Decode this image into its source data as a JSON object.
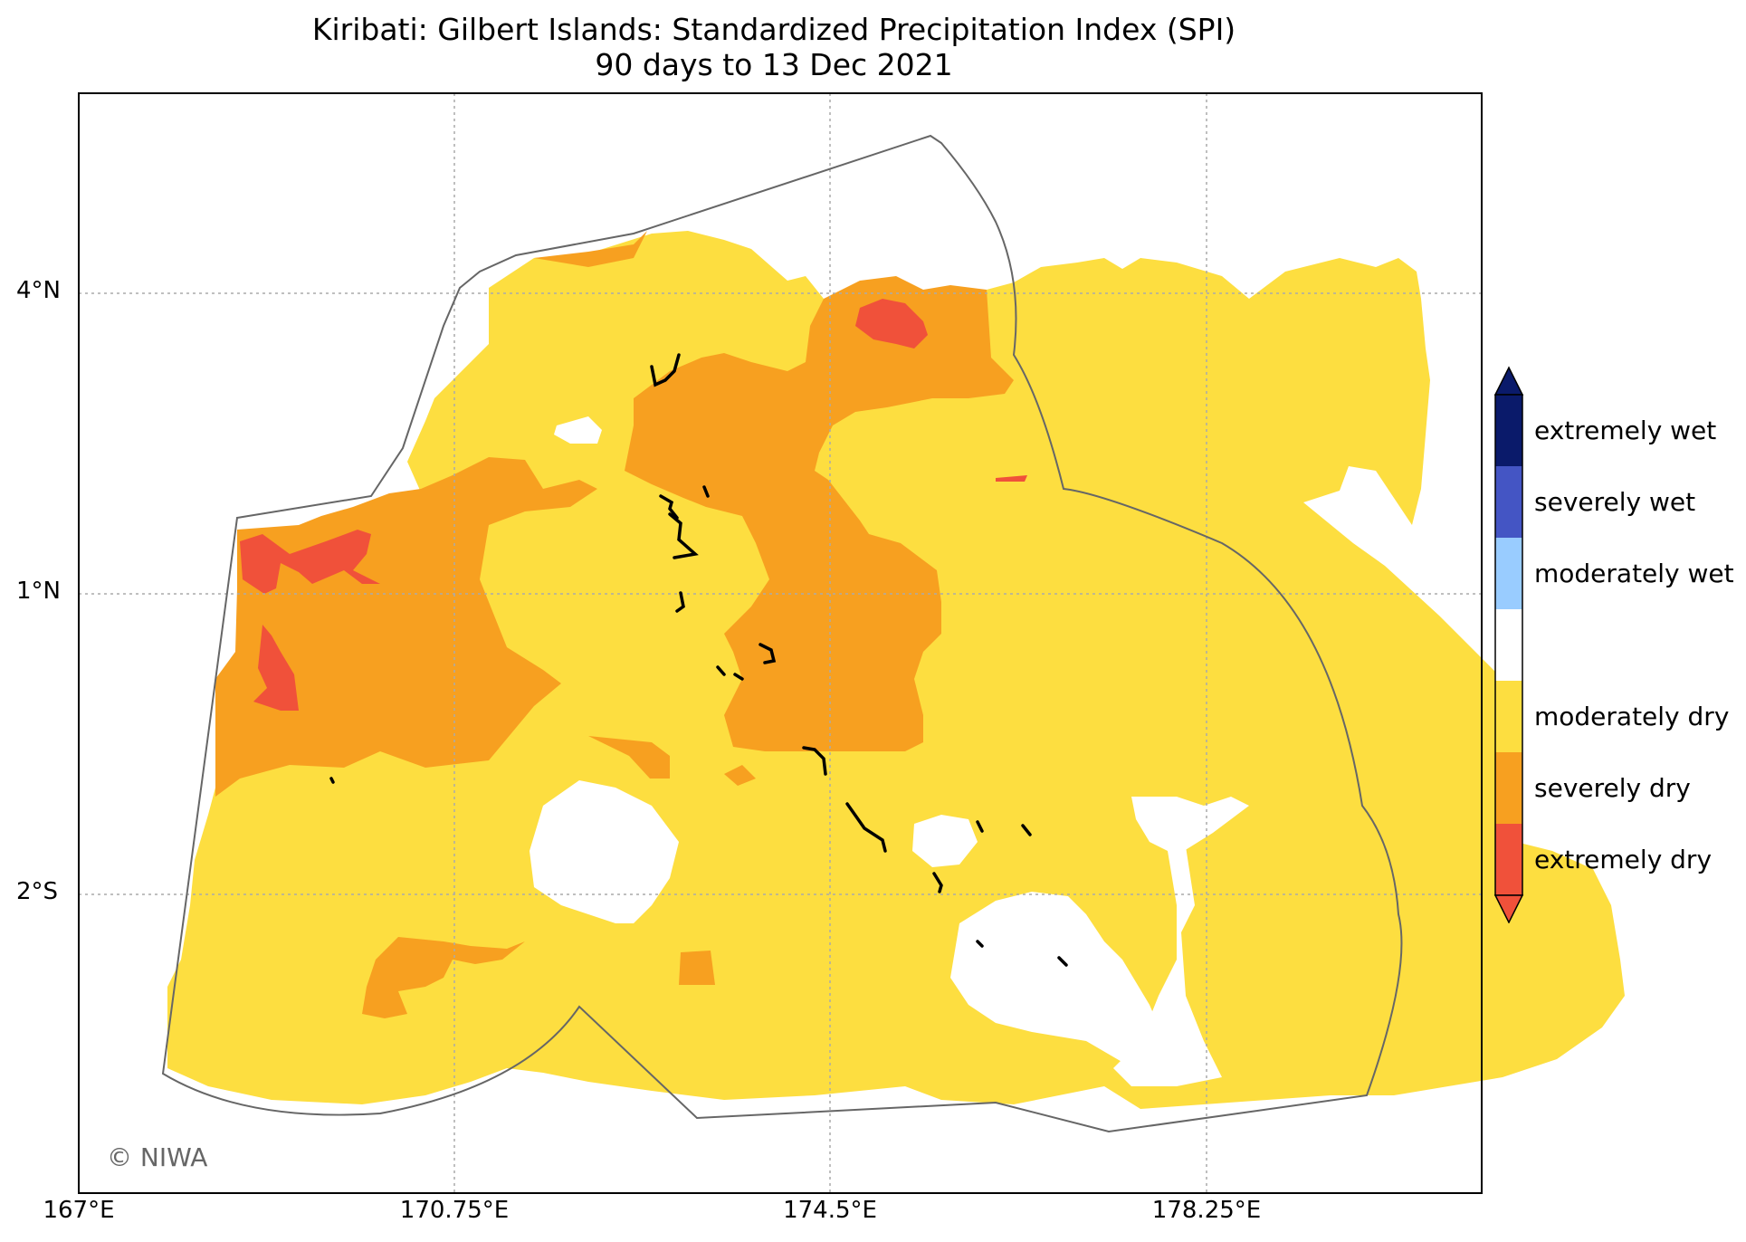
{
  "title": {
    "line1": "Kiribati: Gilbert Islands: Standardized Precipitation Index (SPI)",
    "line2": "90 days to 13 Dec 2021"
  },
  "axes": {
    "x_ticks": [
      "167°E",
      "170.75°E",
      "174.5°E",
      "178.25°E"
    ],
    "y_ticks": [
      "4°N",
      "1°N",
      "2°S"
    ]
  },
  "credit": "© NIWA",
  "legend": {
    "items": [
      {
        "label": "extremely wet",
        "color": "#0a1a6a"
      },
      {
        "label": "severely wet",
        "color": "#4455c4"
      },
      {
        "label": "moderately wet",
        "color": "#99ccff"
      },
      {
        "label": "",
        "color": "#ffffff"
      },
      {
        "label": "moderately dry",
        "color": "#fdde40"
      },
      {
        "label": "severely dry",
        "color": "#f7a020"
      },
      {
        "label": "extremely dry",
        "color": "#f0513a"
      }
    ]
  },
  "colors": {
    "moderately_dry": "#fdde40",
    "severely_dry": "#f7a020",
    "extremely_dry": "#f0513a",
    "eez_outline": "#666666",
    "island": "#000000",
    "gridline": "#aaaaaa"
  }
}
